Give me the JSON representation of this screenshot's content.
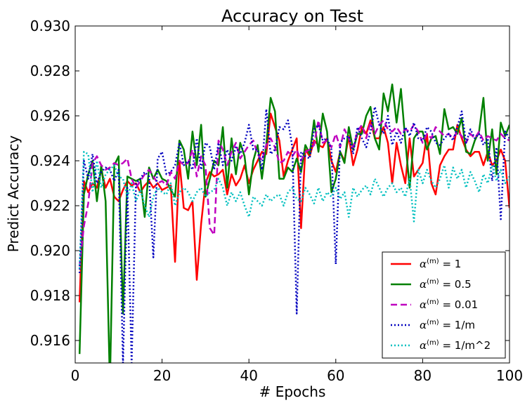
{
  "chart_data": {
    "type": "line",
    "title": "Accuracy on Test",
    "xlabel": "# Epochs",
    "ylabel": "Predict Accuracy",
    "xlim": [
      0,
      100
    ],
    "ylim": [
      0.915,
      0.93
    ],
    "xticks": [
      "0",
      "20",
      "40",
      "60",
      "80",
      "100"
    ],
    "yticks": [
      "0.916",
      "0.918",
      "0.920",
      "0.922",
      "0.924",
      "0.926",
      "0.928",
      "0.930"
    ],
    "grid": false,
    "legend_position": "bottom-right",
    "legend_prefix": "α",
    "legend_superscript": "(m)",
    "series": [
      {
        "name": "= 1",
        "color": "#ff0000",
        "style": "solid",
        "x": [
          1,
          2,
          3,
          4,
          5,
          6,
          7,
          8,
          9,
          10,
          11,
          12,
          13,
          14,
          15,
          16,
          17,
          18,
          19,
          20,
          21,
          22,
          23,
          24,
          25,
          26,
          27,
          28,
          29,
          30,
          31,
          32,
          33,
          34,
          35,
          36,
          37,
          38,
          39,
          40,
          41,
          42,
          43,
          44,
          45,
          46,
          47,
          48,
          49,
          50,
          51,
          52,
          53,
          54,
          55,
          56,
          57,
          58,
          59,
          60,
          61,
          62,
          63,
          64,
          65,
          66,
          67,
          68,
          69,
          70,
          71,
          72,
          73,
          74,
          75,
          76,
          77,
          78,
          79,
          80,
          81,
          82,
          83,
          84,
          85,
          86,
          87,
          88,
          89,
          90,
          91,
          92,
          93,
          94,
          95,
          96,
          97,
          98,
          99,
          100
        ],
        "values": [
          0.9177,
          0.9231,
          0.9226,
          0.923,
          0.9228,
          0.9236,
          0.9228,
          0.9232,
          0.9224,
          0.9222,
          0.9227,
          0.9231,
          0.9229,
          0.923,
          0.9226,
          0.9229,
          0.9231,
          0.9228,
          0.923,
          0.9227,
          0.9228,
          0.9229,
          0.9195,
          0.924,
          0.9219,
          0.9218,
          0.9222,
          0.9187,
          0.9212,
          0.923,
          0.9235,
          0.9233,
          0.9234,
          0.9236,
          0.9225,
          0.9234,
          0.9229,
          0.9232,
          0.9238,
          0.923,
          0.9236,
          0.924,
          0.9244,
          0.9243,
          0.9261,
          0.9255,
          0.9249,
          0.9233,
          0.924,
          0.9245,
          0.925,
          0.921,
          0.9245,
          0.9242,
          0.9249,
          0.9247,
          0.9246,
          0.925,
          0.924,
          0.9235,
          0.9244,
          0.924,
          0.9251,
          0.9238,
          0.9245,
          0.9255,
          0.9252,
          0.9258,
          0.925,
          0.925,
          0.9255,
          0.9248,
          0.923,
          0.9248,
          0.9238,
          0.923,
          0.925,
          0.9233,
          0.9236,
          0.9239,
          0.9252,
          0.923,
          0.9225,
          0.9238,
          0.9242,
          0.9245,
          0.9245,
          0.9256,
          0.925,
          0.9245,
          0.9242,
          0.9244,
          0.9244,
          0.9238,
          0.9244,
          0.9238,
          0.924,
          0.9245,
          0.924,
          0.9219
        ]
      },
      {
        "name": "= 0.5",
        "color": "#008000",
        "style": "solid",
        "x": [
          1,
          2,
          3,
          4,
          5,
          6,
          7,
          8,
          9,
          10,
          11,
          12,
          13,
          14,
          15,
          16,
          17,
          18,
          19,
          20,
          21,
          22,
          23,
          24,
          25,
          26,
          27,
          28,
          29,
          30,
          31,
          32,
          33,
          34,
          35,
          36,
          37,
          38,
          39,
          40,
          41,
          42,
          43,
          44,
          45,
          46,
          47,
          48,
          49,
          50,
          51,
          52,
          53,
          54,
          55,
          56,
          57,
          58,
          59,
          60,
          61,
          62,
          63,
          64,
          65,
          66,
          67,
          68,
          69,
          70,
          71,
          72,
          73,
          74,
          75,
          76,
          77,
          78,
          79,
          80,
          81,
          82,
          83,
          84,
          85,
          86,
          87,
          88,
          89,
          90,
          91,
          92,
          93,
          94,
          95,
          96,
          97,
          98,
          99,
          100
        ],
        "values": [
          0.9154,
          0.9225,
          0.9234,
          0.924,
          0.9222,
          0.9238,
          0.9222,
          0.914,
          0.9238,
          0.9242,
          0.9172,
          0.9233,
          0.9232,
          0.9231,
          0.9232,
          0.9215,
          0.9237,
          0.9232,
          0.9236,
          0.9232,
          0.9231,
          0.9227,
          0.9224,
          0.9249,
          0.9245,
          0.9232,
          0.9253,
          0.9238,
          0.9256,
          0.9224,
          0.9232,
          0.924,
          0.9238,
          0.9255,
          0.9228,
          0.925,
          0.9234,
          0.9248,
          0.9242,
          0.9225,
          0.924,
          0.9247,
          0.9232,
          0.9247,
          0.9268,
          0.9262,
          0.9232,
          0.9232,
          0.9237,
          0.9235,
          0.9241,
          0.9235,
          0.9247,
          0.9243,
          0.9258,
          0.9244,
          0.9261,
          0.9253,
          0.9226,
          0.9232,
          0.9244,
          0.9239,
          0.9255,
          0.9245,
          0.9252,
          0.9252,
          0.926,
          0.9264,
          0.925,
          0.9245,
          0.927,
          0.9262,
          0.9274,
          0.9257,
          0.9272,
          0.9249,
          0.9228,
          0.925,
          0.9253,
          0.9253,
          0.9245,
          0.925,
          0.9251,
          0.9243,
          0.9263,
          0.9254,
          0.9255,
          0.9252,
          0.9259,
          0.9244,
          0.9243,
          0.9249,
          0.9253,
          0.9268,
          0.924,
          0.9254,
          0.9234,
          0.9257,
          0.9251,
          0.9256
        ]
      },
      {
        "name": "= 0.01",
        "color": "#bf00bf",
        "style": "dashed",
        "x": [
          1,
          2,
          3,
          4,
          5,
          6,
          7,
          8,
          9,
          10,
          11,
          12,
          13,
          14,
          15,
          16,
          17,
          18,
          19,
          20,
          21,
          22,
          23,
          24,
          25,
          26,
          27,
          28,
          29,
          30,
          31,
          32,
          33,
          34,
          35,
          36,
          37,
          38,
          39,
          40,
          41,
          42,
          43,
          44,
          45,
          46,
          47,
          48,
          49,
          50,
          51,
          52,
          53,
          54,
          55,
          56,
          57,
          58,
          59,
          60,
          61,
          62,
          63,
          64,
          65,
          66,
          67,
          68,
          69,
          70,
          71,
          72,
          73,
          74,
          75,
          76,
          77,
          78,
          79,
          80,
          81,
          82,
          83,
          84,
          85,
          86,
          87,
          88,
          89,
          90,
          91,
          92,
          93,
          94,
          95,
          96,
          97,
          98,
          99,
          100
        ],
        "values": [
          0.9193,
          0.9211,
          0.9221,
          0.9239,
          0.9242,
          0.9238,
          0.9236,
          0.9237,
          0.9239,
          0.9238,
          0.9239,
          0.9241,
          0.9232,
          0.9228,
          0.9231,
          0.9234,
          0.9236,
          0.9233,
          0.923,
          0.9231,
          0.9229,
          0.9235,
          0.9232,
          0.924,
          0.9238,
          0.9239,
          0.9245,
          0.9233,
          0.9242,
          0.9238,
          0.921,
          0.9207,
          0.9249,
          0.9245,
          0.9238,
          0.9244,
          0.9248,
          0.9241,
          0.9244,
          0.9247,
          0.9249,
          0.9243,
          0.924,
          0.9247,
          0.925,
          0.9246,
          0.9239,
          0.924,
          0.9244,
          0.9242,
          0.9245,
          0.924,
          0.9244,
          0.9245,
          0.9247,
          0.9258,
          0.9248,
          0.9249,
          0.9246,
          0.9252,
          0.9246,
          0.9254,
          0.925,
          0.9246,
          0.9253,
          0.9256,
          0.925,
          0.9257,
          0.9252,
          0.9256,
          0.9258,
          0.9254,
          0.9253,
          0.9255,
          0.9252,
          0.9254,
          0.9253,
          0.9256,
          0.9253,
          0.9248,
          0.9252,
          0.925,
          0.9255,
          0.9253,
          0.9251,
          0.9252,
          0.925,
          0.9253,
          0.9251,
          0.9248,
          0.9252,
          0.925,
          0.9253,
          0.9249,
          0.9251,
          0.925,
          0.9249,
          0.9252,
          0.925,
          0.9249
        ]
      },
      {
        "name": "= 1/m",
        "color": "#0000bf",
        "style": "dotted",
        "x": [
          1,
          2,
          3,
          4,
          5,
          6,
          7,
          8,
          9,
          10,
          11,
          12,
          13,
          14,
          15,
          16,
          17,
          18,
          19,
          20,
          21,
          22,
          23,
          24,
          25,
          26,
          27,
          28,
          29,
          30,
          31,
          32,
          33,
          34,
          35,
          36,
          37,
          38,
          39,
          40,
          41,
          42,
          43,
          44,
          45,
          46,
          47,
          48,
          49,
          50,
          51,
          52,
          53,
          54,
          55,
          56,
          57,
          58,
          59,
          60,
          61,
          62,
          63,
          64,
          65,
          66,
          67,
          68,
          69,
          70,
          71,
          72,
          73,
          74,
          75,
          76,
          77,
          78,
          79,
          80,
          81,
          82,
          83,
          84,
          85,
          86,
          87,
          88,
          89,
          90,
          91,
          92,
          93,
          94,
          95,
          96,
          97,
          98,
          99,
          100
        ],
        "values": [
          0.919,
          0.924,
          0.9232,
          0.9243,
          0.923,
          0.9235,
          0.9237,
          0.9236,
          0.9231,
          0.9236,
          0.915,
          0.9228,
          0.915,
          0.923,
          0.9232,
          0.9235,
          0.9233,
          0.9197,
          0.9241,
          0.9244,
          0.9234,
          0.9235,
          0.9238,
          0.9248,
          0.9238,
          0.924,
          0.9236,
          0.925,
          0.9236,
          0.9248,
          0.9246,
          0.9236,
          0.9248,
          0.9238,
          0.9245,
          0.924,
          0.9246,
          0.9243,
          0.9248,
          0.9256,
          0.9245,
          0.9245,
          0.9236,
          0.9263,
          0.9243,
          0.9245,
          0.9255,
          0.9254,
          0.9258,
          0.9246,
          0.9172,
          0.9244,
          0.9242,
          0.9241,
          0.9254,
          0.9256,
          0.9249,
          0.925,
          0.9245,
          0.9194,
          0.9248,
          0.925,
          0.9251,
          0.9243,
          0.9255,
          0.925,
          0.9246,
          0.9253,
          0.9264,
          0.9256,
          0.9252,
          0.926,
          0.9247,
          0.9253,
          0.9248,
          0.9255,
          0.9251,
          0.9257,
          0.925,
          0.9249,
          0.9255,
          0.9253,
          0.9248,
          0.9247,
          0.925,
          0.9252,
          0.9249,
          0.9255,
          0.9262,
          0.9248,
          0.9254,
          0.925,
          0.9252,
          0.9247,
          0.925,
          0.9231,
          0.9246,
          0.9214,
          0.9253,
          0.925
        ]
      },
      {
        "name": "= 1/m^2",
        "color": "#00bfbf",
        "style": "dotted",
        "x": [
          1,
          2,
          3,
          4,
          5,
          6,
          7,
          8,
          9,
          10,
          11,
          12,
          13,
          14,
          15,
          16,
          17,
          18,
          19,
          20,
          21,
          22,
          23,
          24,
          25,
          26,
          27,
          28,
          29,
          30,
          31,
          32,
          33,
          34,
          35,
          36,
          37,
          38,
          39,
          40,
          41,
          42,
          43,
          44,
          45,
          46,
          47,
          48,
          49,
          50,
          51,
          52,
          53,
          54,
          55,
          56,
          57,
          58,
          59,
          60,
          61,
          62,
          63,
          64,
          65,
          66,
          67,
          68,
          69,
          70,
          71,
          72,
          73,
          74,
          75,
          76,
          77,
          78,
          79,
          80,
          81,
          82,
          83,
          84,
          85,
          86,
          87,
          88,
          89,
          90,
          91,
          92,
          93,
          94,
          95,
          96,
          97,
          98,
          99,
          100
        ],
        "values": [
          0.9192,
          0.9244,
          0.9243,
          0.9226,
          0.924,
          0.9228,
          0.9234,
          0.9236,
          0.9238,
          0.9233,
          0.9232,
          0.9224,
          0.923,
          0.9222,
          0.9227,
          0.922,
          0.9215,
          0.9224,
          0.9228,
          0.9226,
          0.9225,
          0.923,
          0.922,
          0.9226,
          0.9228,
          0.9226,
          0.9222,
          0.9226,
          0.9228,
          0.9224,
          0.9226,
          0.9227,
          0.9232,
          0.9228,
          0.922,
          0.9226,
          0.9222,
          0.9226,
          0.922,
          0.9215,
          0.9224,
          0.9222,
          0.922,
          0.9225,
          0.9222,
          0.9224,
          0.9225,
          0.922,
          0.9226,
          0.9228,
          0.9223,
          0.9222,
          0.9228,
          0.9225,
          0.9221,
          0.9228,
          0.9222,
          0.9226,
          0.9224,
          0.9228,
          0.9223,
          0.9226,
          0.9215,
          0.9228,
          0.9224,
          0.9227,
          0.9229,
          0.9225,
          0.9232,
          0.9228,
          0.9224,
          0.9228,
          0.923,
          0.9226,
          0.9228,
          0.9224,
          0.9232,
          0.9213,
          0.9236,
          0.923,
          0.9236,
          0.9231,
          0.9228,
          0.9232,
          0.9238,
          0.9228,
          0.9237,
          0.9232,
          0.9236,
          0.9228,
          0.9235,
          0.9231,
          0.9226,
          0.9234,
          0.923,
          0.9238,
          0.9231,
          0.9236,
          0.923,
          0.9233
        ]
      }
    ]
  }
}
